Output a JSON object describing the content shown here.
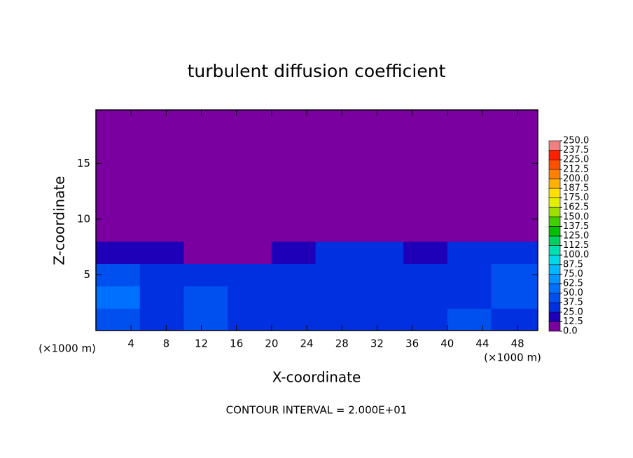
{
  "chart_data": {
    "type": "heatmap",
    "title": "turbulent diffusion coefficient",
    "xlabel": "X-coordinate",
    "ylabel": "Z-coordinate",
    "xunit": "(×1000 m)",
    "yunit": "(×1000 m)",
    "annotation": "CONTOUR INTERVAL = 2.000E+01",
    "xlim": [
      0,
      50.3
    ],
    "ylim": [
      0,
      19.8
    ],
    "xticks": [
      4,
      8,
      12,
      16,
      20,
      24,
      28,
      32,
      36,
      40,
      44,
      48
    ],
    "yticks": [
      5,
      10,
      15
    ],
    "xbins": [
      0,
      5,
      10,
      15,
      20,
      25,
      30,
      35,
      40,
      45,
      50.3
    ],
    "ybins": [
      0,
      2,
      4,
      6,
      8,
      19.8
    ],
    "values": [
      [
        45,
        35,
        40,
        35,
        30,
        35,
        30,
        30,
        40,
        35
      ],
      [
        50,
        35,
        40,
        30,
        35,
        30,
        35,
        35,
        35,
        40
      ],
      [
        40,
        30,
        35,
        25,
        30,
        30,
        35,
        30,
        35,
        40
      ],
      [
        20,
        15,
        10,
        5,
        15,
        30,
        25,
        15,
        25,
        30
      ],
      [
        0,
        0,
        0,
        0,
        0,
        0,
        0,
        0,
        0,
        0
      ]
    ],
    "colorbar": {
      "lim": [
        0,
        250
      ],
      "ticks": [
        {
          "value": 0,
          "label": "0.0"
        },
        {
          "value": 12.5,
          "label": "12.5"
        },
        {
          "value": 25,
          "label": "25.0"
        },
        {
          "value": 37.5,
          "label": "37.5"
        },
        {
          "value": 50,
          "label": "50.0"
        },
        {
          "value": 62.5,
          "label": "62.5"
        },
        {
          "value": 75,
          "label": "75.0"
        },
        {
          "value": 87.5,
          "label": "87.5"
        },
        {
          "value": 100,
          "label": "100.0"
        },
        {
          "value": 112.5,
          "label": "112.5"
        },
        {
          "value": 125,
          "label": "125.0"
        },
        {
          "value": 137.5,
          "label": "137.5"
        },
        {
          "value": 150,
          "label": "150.0"
        },
        {
          "value": 162.5,
          "label": "162.5"
        },
        {
          "value": 175,
          "label": "175.0"
        },
        {
          "value": 187.5,
          "label": "187.5"
        },
        {
          "value": 200,
          "label": "200.0"
        },
        {
          "value": 212.5,
          "label": "212.5"
        },
        {
          "value": 225,
          "label": "225.0"
        },
        {
          "value": 237.5,
          "label": "237.5"
        },
        {
          "value": 250,
          "label": "250.0"
        }
      ],
      "colors": [
        "#7a00a0",
        "#1e00b8",
        "#0030e0",
        "#0050f0",
        "#0070ff",
        "#0094ff",
        "#00b8ff",
        "#00d8e8",
        "#00e0b0",
        "#00d060",
        "#00c000",
        "#40d000",
        "#a0e000",
        "#e0f000",
        "#ffe000",
        "#ffb000",
        "#ff8000",
        "#ff5000",
        "#ff2000",
        "#f08080"
      ]
    }
  }
}
